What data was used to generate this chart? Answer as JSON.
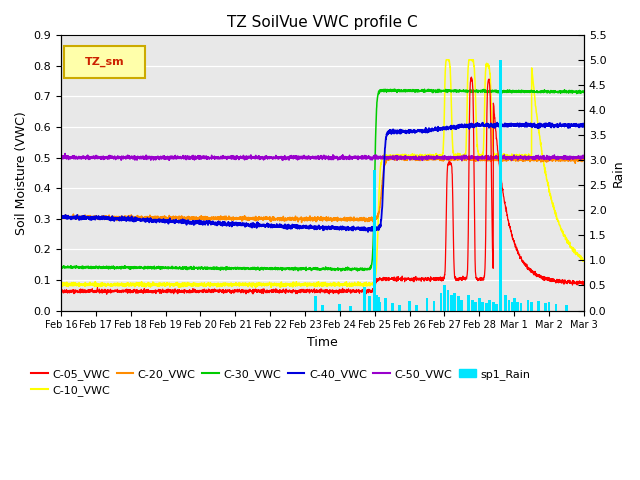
{
  "title": "TZ SoilVue VWC profile C",
  "xlabel": "Time",
  "ylabel_left": "Soil Moisture (VWC)",
  "ylabel_right": "Rain",
  "ylim_left": [
    0.0,
    0.9
  ],
  "ylim_right": [
    0.0,
    5.5
  ],
  "yticks_left": [
    0.0,
    0.1,
    0.2,
    0.3,
    0.4,
    0.5,
    0.6,
    0.7,
    0.8,
    0.9
  ],
  "yticks_right": [
    0.0,
    0.5,
    1.0,
    1.5,
    2.0,
    2.5,
    3.0,
    3.5,
    4.0,
    4.5,
    5.0,
    5.5
  ],
  "background_color": "#e8e8e8",
  "plot_bg_colors": [
    "#f0f0f0",
    "#e0e0e0"
  ],
  "colors": {
    "C-05_VWC": "#ff0000",
    "C-10_VWC": "#ffff00",
    "C-20_VWC": "#ff8c00",
    "C-30_VWC": "#00cc00",
    "C-40_VWC": "#0000dd",
    "C-50_VWC": "#9900cc",
    "sp1_Rain": "#00e5ff"
  },
  "legend_box_facecolor": "#ffffaa",
  "legend_box_edgecolor": "#ccaa00",
  "legend_box_label": "TZ_sm",
  "legend_box_label_color": "#cc2200",
  "date_labels": [
    "Feb 16",
    "Feb 17",
    "Feb 18",
    "Feb 19",
    "Feb 20",
    "Feb 21",
    "Feb 22",
    "Feb 23",
    "Feb 24",
    "Feb 25",
    "Feb 26",
    "Feb 27",
    "Feb 28",
    "Mar 1",
    "Mar 2",
    "Mar 3"
  ],
  "n_points": 3000
}
